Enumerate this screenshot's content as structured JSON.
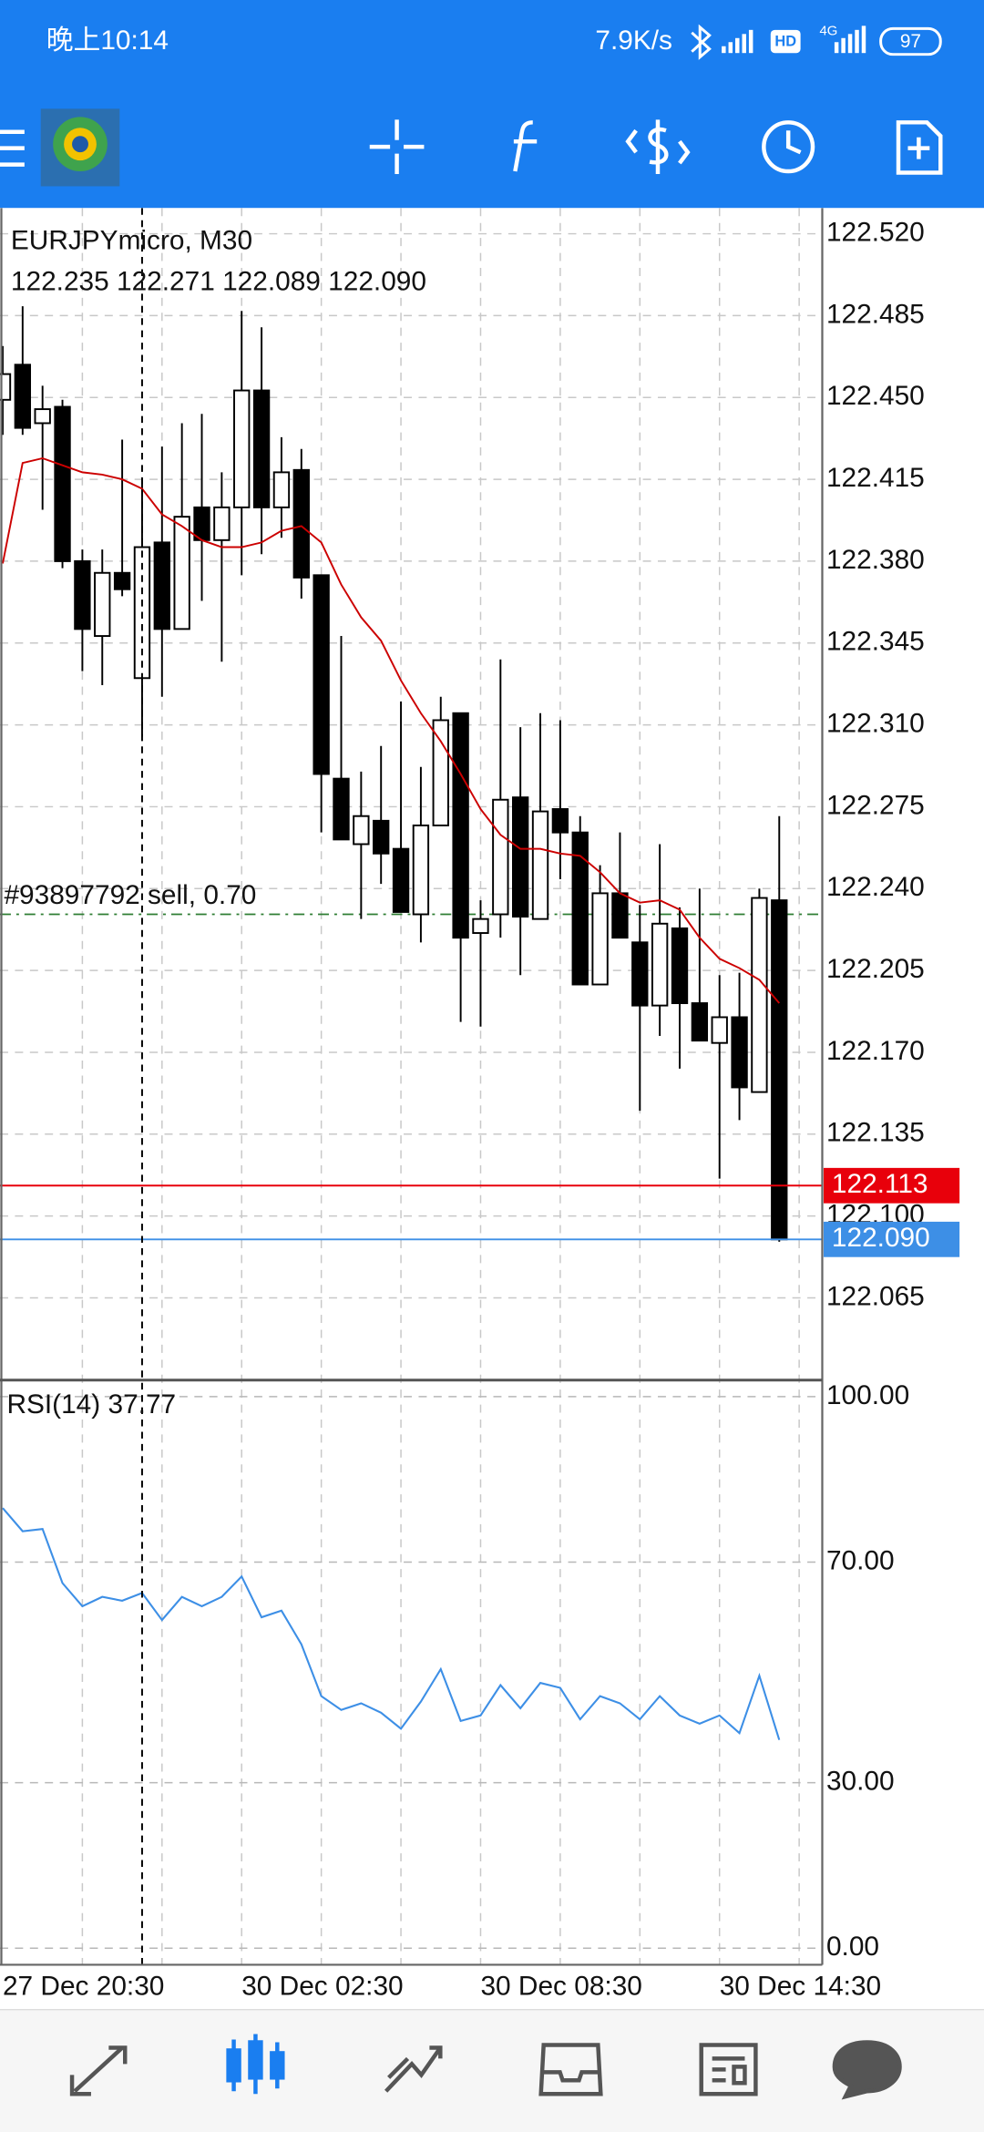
{
  "status_bar": {
    "time": "晚上10:14",
    "speed": "7.9K/s",
    "hd": "HD",
    "network": "4G",
    "battery": "97"
  },
  "chart_data": [
    {
      "type": "candlestick",
      "title": "EURJPYmicro, M30",
      "ohlc_label": "122.235 122.271 122.089 122.090",
      "categories": [
        "27 Dec 20:30",
        null,
        null,
        null,
        null,
        null,
        null,
        null,
        null,
        null,
        null,
        null,
        "30 Dec 02:30",
        null,
        null,
        null,
        null,
        null,
        null,
        null,
        null,
        null,
        null,
        null,
        "30 Dec 08:30",
        null,
        null,
        null,
        null,
        null,
        null,
        null,
        null,
        null,
        null,
        null,
        "30 Dec 14:30",
        null,
        null,
        null
      ],
      "open": [
        122.449,
        122.464,
        122.439,
        122.446,
        122.38,
        122.348,
        122.375,
        122.33,
        122.388,
        122.351,
        122.403,
        122.389,
        122.403,
        122.453,
        122.403,
        122.419,
        122.374,
        122.287,
        122.259,
        122.269,
        122.257,
        122.229,
        122.267,
        122.315,
        122.221,
        122.229,
        122.279,
        122.227,
        122.274,
        122.264,
        122.199,
        122.238,
        122.217,
        122.19,
        122.223,
        122.191,
        122.174,
        122.185,
        122.153,
        122.235
      ],
      "high": [
        122.472,
        122.489,
        122.455,
        122.449,
        122.385,
        122.385,
        122.432,
        122.415,
        122.429,
        122.439,
        122.443,
        122.418,
        122.487,
        122.48,
        122.433,
        122.428,
        122.374,
        122.348,
        122.29,
        122.301,
        122.32,
        122.292,
        122.322,
        122.315,
        122.235,
        122.338,
        122.309,
        122.315,
        122.312,
        122.271,
        122.25,
        122.264,
        122.233,
        122.259,
        122.232,
        122.24,
        122.203,
        122.204,
        122.24,
        122.271
      ],
      "low": [
        122.434,
        122.434,
        122.402,
        122.377,
        122.333,
        122.327,
        122.365,
        122.305,
        122.322,
        122.351,
        122.363,
        122.337,
        122.374,
        122.383,
        122.39,
        122.364,
        122.264,
        122.261,
        122.227,
        122.242,
        122.23,
        122.217,
        122.267,
        122.183,
        122.181,
        122.219,
        122.203,
        122.227,
        122.244,
        122.199,
        122.199,
        122.219,
        122.145,
        122.177,
        122.163,
        122.175,
        122.116,
        122.141,
        122.153,
        122.089
      ],
      "close": [
        122.46,
        122.437,
        122.445,
        122.38,
        122.351,
        122.375,
        122.368,
        122.386,
        122.351,
        122.399,
        122.389,
        122.403,
        122.453,
        122.403,
        122.418,
        122.373,
        122.289,
        122.261,
        122.271,
        122.255,
        122.23,
        122.267,
        122.312,
        122.219,
        122.227,
        122.278,
        122.228,
        122.273,
        122.264,
        122.199,
        122.238,
        122.219,
        122.19,
        122.225,
        122.191,
        122.175,
        122.185,
        122.155,
        122.236,
        122.09
      ],
      "overlay": {
        "color": "#cc0000",
        "values": [
          122.379,
          122.422,
          122.424,
          122.421,
          122.418,
          122.417,
          122.415,
          122.411,
          122.4,
          122.395,
          122.389,
          122.386,
          122.386,
          122.388,
          122.393,
          122.395,
          122.388,
          122.37,
          122.356,
          122.346,
          122.329,
          122.315,
          122.303,
          122.289,
          122.274,
          122.263,
          122.257,
          122.257,
          122.255,
          122.254,
          122.247,
          122.238,
          122.234,
          122.235,
          122.231,
          122.219,
          122.21,
          122.206,
          122.201,
          122.191
        ]
      },
      "order_line": {
        "label": "#93897792 sell, 0.70",
        "value": 122.229,
        "color": "#2e7d32"
      },
      "price_markers": [
        {
          "value": 122.113,
          "color": "#e8000b"
        },
        {
          "value": 122.09,
          "value_label": "122.090",
          "color": "#3d8fe6"
        }
      ],
      "ylim": [
        122.031,
        122.531
      ],
      "yticks": [
        {
          "value": 122.52,
          "label": "122.520"
        },
        122.485,
        {
          "value": 122.45,
          "label": "122.450"
        },
        122.415,
        {
          "value": 122.38,
          "label": "122.380"
        },
        122.345,
        {
          "value": 122.31,
          "label": "122.310"
        },
        122.275,
        {
          "value": 122.24,
          "label": "122.240"
        },
        122.205,
        {
          "value": 122.17,
          "label": "122.170"
        },
        122.135,
        {
          "value": 122.1,
          "label": "122.100"
        },
        122.065
      ],
      "grid": true
    },
    {
      "type": "line",
      "title": "RSI(14) 37.77",
      "color": "#3d8fe6",
      "values": [
        79.8,
        75.6,
        76.0,
        66.2,
        62.0,
        63.7,
        63.0,
        64.4,
        59.5,
        63.7,
        62.0,
        63.7,
        67.4,
        60.0,
        61.2,
        55.1,
        45.7,
        43.2,
        44.4,
        42.7,
        39.8,
        44.7,
        50.6,
        41.2,
        42.2,
        47.7,
        43.5,
        48.1,
        47.2,
        41.5,
        45.7,
        44.4,
        41.5,
        45.7,
        42.2,
        40.7,
        42.2,
        39.0,
        49.4,
        37.77
      ],
      "ylim": [
        -3,
        103
      ],
      "yticks": [
        {
          "value": 100,
          "label": "100.00"
        },
        {
          "value": 70,
          "label": "70.00"
        },
        {
          "value": 30,
          "label": "30.00"
        },
        {
          "value": 0,
          "label": "0.00"
        }
      ],
      "grid": true
    }
  ]
}
